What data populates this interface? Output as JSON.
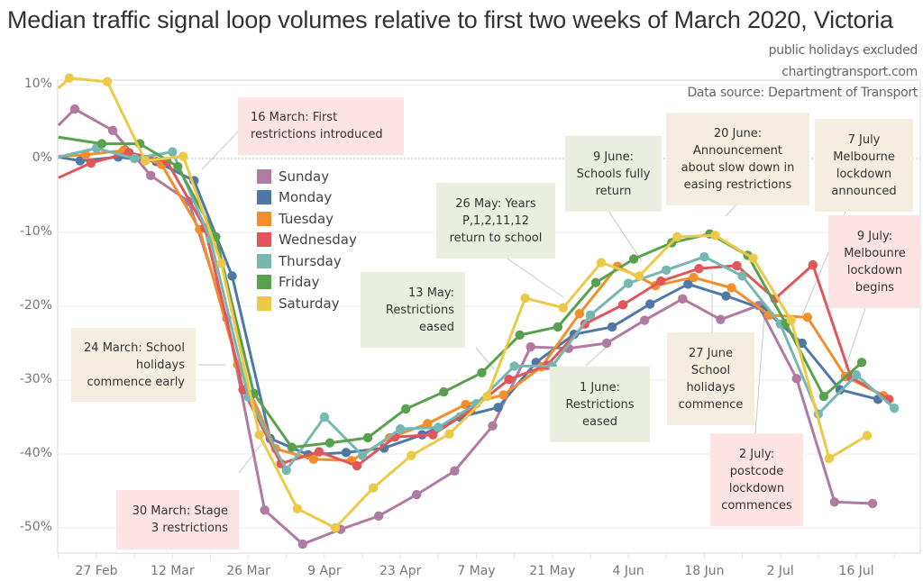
{
  "header": {
    "title": "Median traffic signal loop volumes relative to first two weeks of March 2020, Victoria",
    "subtitle_1": "public holidays excluded",
    "subtitle_2": "chartingtransport.com",
    "source": "Data source: Department of Transport"
  },
  "chart_data": {
    "type": "line",
    "title": "Median traffic signal loop volumes relative to first two weeks of March 2020, Victoria",
    "xlabel": "",
    "ylabel": "",
    "ylim": [
      -54,
      11
    ],
    "y_ticks": [
      "10%",
      "0%",
      "-10%",
      "-20%",
      "-30%",
      "-40%",
      "-50%"
    ],
    "y_tick_values": [
      10,
      0,
      -10,
      -20,
      -30,
      -40,
      -50
    ],
    "x_ticks": [
      "27 Feb",
      "12 Mar",
      "26 Mar",
      "9 Apr",
      "23 Apr",
      "7 May",
      "21 May",
      "4 Jun",
      "18 Jun",
      "2 Jul",
      "16 Jul"
    ],
    "x_tick_days": [
      0,
      14,
      28,
      42,
      56,
      70,
      84,
      98,
      112,
      126,
      140
    ],
    "x_unit": "days since 27 Feb 2020",
    "grid": true,
    "legend_position": "inside-top-left",
    "series": [
      {
        "name": "Sunday",
        "color": "#b07aa1",
        "days": [
          -7,
          -4,
          3,
          10,
          17,
          24,
          31,
          38,
          45,
          52,
          59,
          66,
          73,
          80,
          87,
          94,
          101,
          108,
          115,
          122,
          129,
          136,
          143
        ],
        "values": [
          4.5,
          6.7,
          3.8,
          -2.3,
          -5.8,
          -21.6,
          -47.6,
          -52.2,
          -50.2,
          -48.4,
          -45.5,
          -42.3,
          -36.2,
          -25.5,
          -25.7,
          -25.0,
          -21.9,
          -19.0,
          -21.8,
          -19.9,
          -29.8,
          -46.5,
          -46.7
        ]
      },
      {
        "name": "Monday",
        "color": "#4e79a7",
        "days": [
          -7,
          -3,
          4,
          11,
          18,
          25,
          32,
          39,
          46,
          53,
          60,
          67,
          74,
          81,
          88,
          95,
          102,
          109,
          116,
          123,
          130,
          137,
          144
        ],
        "values": [
          0.2,
          -0.3,
          0.2,
          -0.4,
          -3.0,
          -15.9,
          -37.9,
          -40.1,
          -39.8,
          -39.2,
          -37.4,
          -35.0,
          -33.7,
          -27.6,
          -23.8,
          -22.8,
          -19.7,
          -17.0,
          -18.6,
          -20.4,
          -25.0,
          -31.3,
          -32.6
        ]
      },
      {
        "name": "Tuesday",
        "color": "#f28e2b",
        "days": [
          -7,
          -2,
          5,
          12,
          19,
          26,
          33,
          40,
          47,
          54,
          61,
          68,
          75,
          82,
          89,
          96,
          103,
          110,
          117,
          124,
          131,
          138,
          145
        ],
        "values": [
          0.3,
          0.5,
          1.1,
          -0.8,
          -9.6,
          -27.9,
          -39.3,
          -40.7,
          -40.9,
          -37.8,
          -35.9,
          -33.3,
          -32.0,
          -28.2,
          -21.0,
          -14.6,
          -17.2,
          -16.1,
          -17.5,
          -21.2,
          -21.5,
          -29.5,
          -32.1
        ]
      },
      {
        "name": "Wednesday",
        "color": "#e15759",
        "days": [
          -7,
          -1,
          6,
          13,
          20,
          27,
          34,
          41,
          48,
          55,
          62,
          69,
          76,
          83,
          90,
          97,
          104,
          111,
          118,
          125,
          132,
          139,
          146
        ],
        "values": [
          -2.6,
          -0.6,
          0.8,
          -0.4,
          -9.4,
          -31.3,
          -41.3,
          -39.7,
          -41.6,
          -37.7,
          -37.4,
          -34.0,
          -29.9,
          -28.0,
          -22.4,
          -19.8,
          -16.6,
          -14.9,
          -14.5,
          -19.0,
          -14.4,
          -29.6,
          -32.6
        ]
      },
      {
        "name": "Thursday",
        "color": "#76b7b2",
        "days": [
          -7,
          0,
          7,
          14,
          21,
          28,
          35,
          42,
          49,
          56,
          63,
          70,
          77,
          84,
          91,
          98,
          105,
          112,
          119,
          126,
          133,
          140,
          147
        ],
        "values": [
          0.2,
          1.4,
          0.0,
          0.9,
          -10.9,
          -32.3,
          -42.2,
          -35.0,
          -40.2,
          -36.6,
          -36.4,
          -33.2,
          -28.1,
          -28.1,
          -21.2,
          -16.9,
          -15.1,
          -13.3,
          -15.9,
          -22.4,
          -34.6,
          -29.3,
          -33.8
        ]
      },
      {
        "name": "Friday",
        "color": "#59a14f",
        "days": [
          -7,
          1,
          8,
          15,
          22,
          29,
          36,
          43,
          50,
          57,
          64,
          71,
          78,
          85,
          92,
          99,
          106,
          113,
          120,
          127,
          134,
          141
        ],
        "values": [
          2.9,
          2.0,
          2.0,
          -1.1,
          -10.6,
          -31.8,
          -39.1,
          -38.5,
          -37.8,
          -33.9,
          -31.6,
          -29.0,
          -23.9,
          -22.8,
          -16.8,
          -13.6,
          -11.4,
          -10.2,
          -13.1,
          -22.3,
          -32.2,
          -27.6
        ]
      },
      {
        "name": "Saturday",
        "color": "#edc948",
        "days": [
          -7,
          -5,
          2,
          9,
          16,
          23,
          30,
          37,
          44,
          51,
          58,
          65,
          72,
          79,
          86,
          93,
          100,
          107,
          114,
          121,
          128,
          135,
          142
        ],
        "values": [
          9.5,
          10.9,
          10.4,
          -0.3,
          0.3,
          -14.2,
          -37.4,
          -47.4,
          -50.0,
          -44.6,
          -40.2,
          -37.3,
          -32.2,
          -18.9,
          -20.2,
          -14.1,
          -15.9,
          -10.6,
          -10.4,
          -13.5,
          -21.9,
          -40.6,
          -37.5
        ]
      }
    ],
    "annotations": [
      {
        "text": "16 March: First\nrestrictions introduced",
        "category": "restriction",
        "day": 18
      },
      {
        "text": "24 March: School\nholidays\ncommence early",
        "category": "school",
        "day": 26
      },
      {
        "text": "30 March: Stage\n3 restrictions",
        "category": "restriction",
        "day": 32
      },
      {
        "text": "13 May: Restrictions\neased",
        "category": "easing",
        "day": 76
      },
      {
        "text": "26 May: Years\nP,1,2,11,12\nreturn to school",
        "category": "easing",
        "day": 89
      },
      {
        "text": "1 June:\nRestrictions\neased",
        "category": "easing",
        "day": 95
      },
      {
        "text": "9 June:\nSchools fully\nreturn",
        "category": "easing",
        "day": 103
      },
      {
        "text": "20 June:\nAnnouncement\nabout slow down in\neasing restrictions",
        "category": "school",
        "day": 114
      },
      {
        "text": "27 June\nSchool\nholidays\ncommence",
        "category": "school",
        "day": 121
      },
      {
        "text": "2 July:\npostcode\nlockdown\ncommences",
        "category": "restriction",
        "day": 126
      },
      {
        "text": "7 July\nMelbourne\nlockdown\nannounced",
        "category": "school",
        "day": 131
      },
      {
        "text": "9 July:\nMelbounre\nlockdown\nbegins",
        "category": "restriction",
        "day": 133
      }
    ]
  },
  "legend": [
    "Sunday",
    "Monday",
    "Tuesday",
    "Wednesday",
    "Thursday",
    "Friday",
    "Saturday"
  ],
  "colors": {
    "restriction_box": "#fde3e3",
    "easing_box": "#e9eedf",
    "school_box": "#f4eee1"
  }
}
